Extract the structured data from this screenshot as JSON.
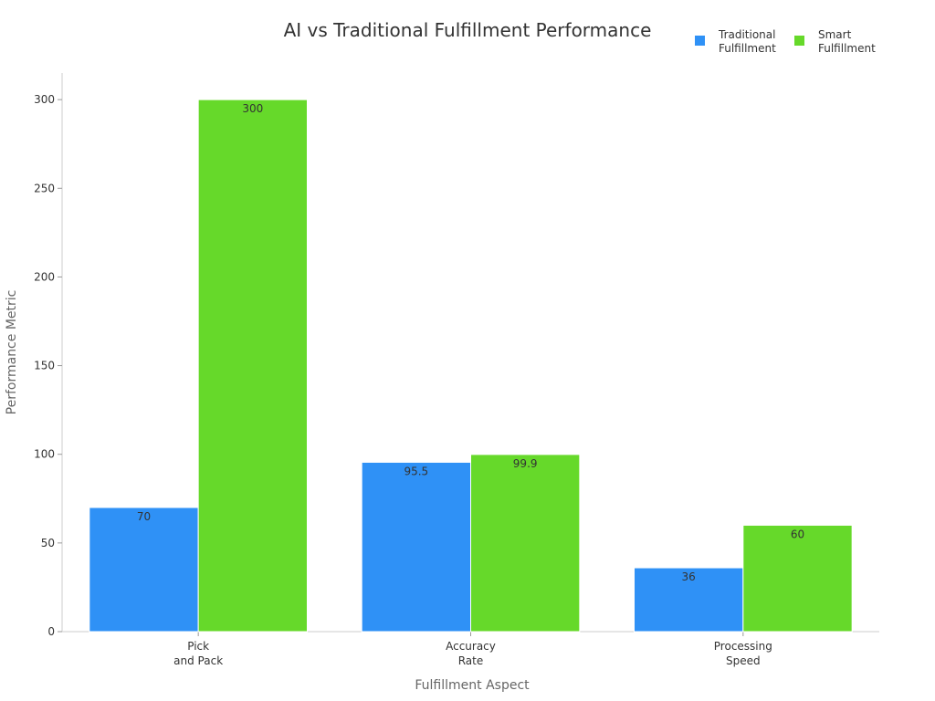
{
  "chart_data": {
    "type": "bar",
    "title": "AI vs Traditional Fulfillment Performance",
    "xlabel": "Fulfillment Aspect",
    "ylabel": "Performance Metric",
    "categories": [
      [
        "Pick",
        "and Pack"
      ],
      [
        "Accuracy",
        "Rate"
      ],
      [
        "Processing",
        "Speed"
      ]
    ],
    "series": [
      {
        "name": [
          "Traditional",
          "Fulfillment"
        ],
        "color": "#2f91f6",
        "values": [
          70,
          95.5,
          36
        ],
        "labels": [
          "70",
          "95.5",
          "36"
        ]
      },
      {
        "name": [
          "Smart",
          "Fulfillment"
        ],
        "color": "#66d92a",
        "values": [
          300,
          99.9,
          60
        ],
        "labels": [
          "300",
          "99.9",
          "60"
        ]
      }
    ],
    "ylim": [
      0,
      315
    ],
    "yticks": [
      "0",
      "50",
      "100",
      "150",
      "200",
      "250",
      "300"
    ],
    "grid": false,
    "legend_position": "top-right"
  }
}
